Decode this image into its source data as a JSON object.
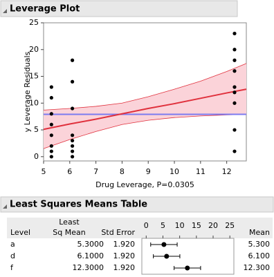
{
  "headers": [
    "Leverage Plot",
    "Least Squares Means Table"
  ],
  "chart_data": {
    "type": "scatter",
    "x_label": "Drug Leverage, P=0.0305",
    "y_label": "y Leverage Residuals",
    "xlim": [
      5,
      12.75
    ],
    "ylim": [
      -0.8,
      25
    ],
    "xticks": [
      5,
      6,
      7,
      8,
      9,
      10,
      11,
      12
    ],
    "yticks": [
      0,
      5,
      10,
      15,
      20,
      25
    ],
    "x": [
      5.3,
      5.3,
      5.3,
      5.3,
      5.3,
      5.3,
      5.3,
      5.3,
      6.1,
      6.1,
      6.1,
      6.1,
      6.1,
      6.1,
      6.1,
      6.1,
      12.3,
      12.3,
      12.3,
      12.3,
      12.3,
      12.3,
      12.3,
      12.3,
      12.3
    ],
    "y": [
      0,
      1,
      2,
      4,
      6,
      8,
      11,
      13,
      0,
      1,
      2,
      3,
      4,
      9,
      14,
      18,
      1,
      5,
      10,
      12,
      13,
      16,
      18,
      20,
      23
    ],
    "color": "#000000",
    "mean_line": 7.9,
    "mean_color": "#7b7bf0",
    "fit": {
      "color": "#e0303c",
      "band_color": "#fbd3d9",
      "x": [
        5,
        6,
        7,
        8,
        9,
        10,
        11,
        12,
        12.75
      ],
      "y": [
        5.1,
        6.1,
        7.0,
        8.0,
        9.0,
        9.9,
        10.9,
        11.9,
        12.6
      ],
      "lower": [
        1.5,
        3.2,
        4.7,
        6.0,
        6.8,
        7.3,
        7.6,
        7.8,
        7.9
      ],
      "upper": [
        8.7,
        9.0,
        9.4,
        10.0,
        11.2,
        12.6,
        14.1,
        15.9,
        17.4
      ]
    }
  },
  "table": {
    "columns": [
      "Level",
      [
        "Least",
        "Sq Mean"
      ],
      "Std Error",
      "Mean"
    ],
    "rows": [
      [
        "a",
        "5.3000",
        "1.920",
        "5.300"
      ],
      [
        "d",
        "6.1000",
        "1.920",
        "6.100"
      ],
      [
        "f",
        "12.3000",
        "1.920",
        "12.300"
      ]
    ]
  },
  "mini_plot": {
    "xlim": [
      -1.3,
      26.2
    ],
    "xticks": [
      0,
      5,
      10,
      15,
      20,
      25
    ],
    "values": [
      5.3,
      6.1,
      12.3
    ],
    "lower": [
      1.34,
      2.14,
      8.34
    ],
    "upper": [
      9.26,
      10.06,
      16.26
    ]
  }
}
